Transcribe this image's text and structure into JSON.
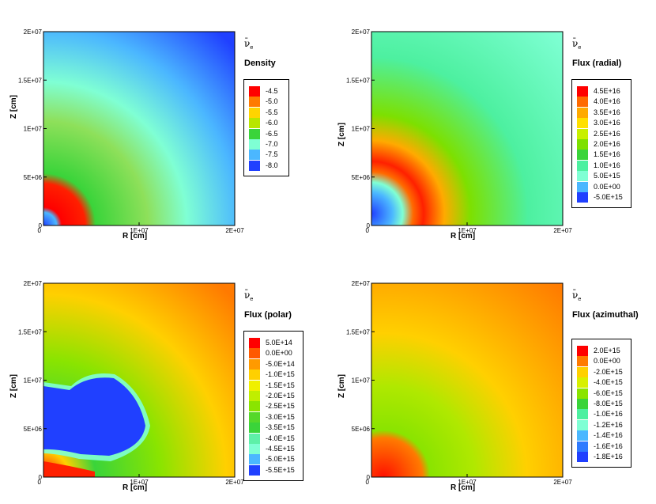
{
  "chart_data": [
    {
      "type": "heatmap",
      "variable_symbol": "ν",
      "subscript": "e",
      "title": "Density",
      "xlabel": "R [cm]",
      "ylabel": "Z [cm]",
      "xlim": [
        0,
        20000000
      ],
      "ylim": [
        0,
        20000000
      ],
      "x_ticks": [
        "0",
        "1E+07",
        "2E+07"
      ],
      "y_ticks": [
        "0",
        "5E+06",
        "1E+07",
        "1.5E+07",
        "2E+07"
      ],
      "legend": {
        "levels": [
          "-4.5",
          "-5.0",
          "-5.5",
          "-6.0",
          "-6.5",
          "-7.0",
          "-7.5",
          "-8.0"
        ],
        "colors": [
          "#ff0000",
          "#ff7a00",
          "#ffd400",
          "#b8e600",
          "#3ad43a",
          "#7fffd4",
          "#4bb7ff",
          "#2040ff"
        ]
      }
    },
    {
      "type": "heatmap",
      "variable_symbol": "ν",
      "subscript": "e",
      "title": "Flux (radial)",
      "xlabel": "R [cm]",
      "ylabel": "Z [cm]",
      "xlim": [
        0,
        20000000
      ],
      "ylim": [
        0,
        20000000
      ],
      "x_ticks": [
        "0",
        "1E+07",
        "2E+07"
      ],
      "y_ticks": [
        "0",
        "5E+06",
        "1E+07",
        "1.5E+07",
        "2E+07"
      ],
      "legend": {
        "levels": [
          "4.5E+16",
          "4.0E+16",
          "3.5E+16",
          "3.0E+16",
          "2.5E+16",
          "2.0E+16",
          "1.5E+16",
          "1.0E+16",
          "5.0E+15",
          "0.0E+00",
          "-5.0E+15"
        ],
        "colors": [
          "#ff0000",
          "#ff6a00",
          "#ffaa00",
          "#ffe000",
          "#c8f000",
          "#7de000",
          "#3ad43a",
          "#4df0a0",
          "#7fffd4",
          "#4bb7ff",
          "#2040ff"
        ]
      }
    },
    {
      "type": "heatmap",
      "variable_symbol": "ν",
      "subscript": "e",
      "title": "Flux (polar)",
      "xlabel": "R [cm]",
      "ylabel": "Z [cm]",
      "xlim": [
        0,
        20000000
      ],
      "ylim": [
        0,
        20000000
      ],
      "x_ticks": [
        "0",
        "1E+07",
        "2E+07"
      ],
      "y_ticks": [
        "0",
        "5E+06",
        "1E+07",
        "1.5E+07",
        "2E+07"
      ],
      "legend": {
        "levels": [
          "5.0E+14",
          "0.0E+00",
          "-5.0E+14",
          "-1.0E+15",
          "-1.5E+15",
          "-2.0E+15",
          "-2.5E+15",
          "-3.0E+15",
          "-3.5E+15",
          "-4.0E+15",
          "-4.5E+15",
          "-5.0E+15",
          "-5.5E+15"
        ],
        "colors": [
          "#ff0000",
          "#ff5a00",
          "#ff9a00",
          "#ffd000",
          "#f0f000",
          "#c0ee00",
          "#8ae400",
          "#55d82a",
          "#3ad43a",
          "#5ef0a8",
          "#7fffd4",
          "#4bb7ff",
          "#2040ff"
        ]
      }
    },
    {
      "type": "heatmap",
      "variable_symbol": "ν",
      "subscript": "e",
      "title": "Flux (azimuthal)",
      "xlabel": "R [cm]",
      "ylabel": "Z [cm]",
      "xlim": [
        0,
        20000000
      ],
      "ylim": [
        0,
        20000000
      ],
      "x_ticks": [
        "0",
        "1E+07",
        "2E+07"
      ],
      "y_ticks": [
        "0",
        "5E+06",
        "1E+07",
        "1.5E+07",
        "2E+07"
      ],
      "legend": {
        "levels": [
          "2.0E+15",
          "0.0E+00",
          "-2.0E+15",
          "-4.0E+15",
          "-6.0E+15",
          "-8.0E+15",
          "-1.0E+16",
          "-1.2E+16",
          "-1.4E+16",
          "-1.6E+16",
          "-1.8E+16"
        ],
        "colors": [
          "#ff0000",
          "#ff7a00",
          "#ffd000",
          "#d8f000",
          "#8ae400",
          "#3ad43a",
          "#4df0a0",
          "#7fffd4",
          "#4bb7ff",
          "#2f7bff",
          "#2040ff"
        ]
      }
    }
  ]
}
